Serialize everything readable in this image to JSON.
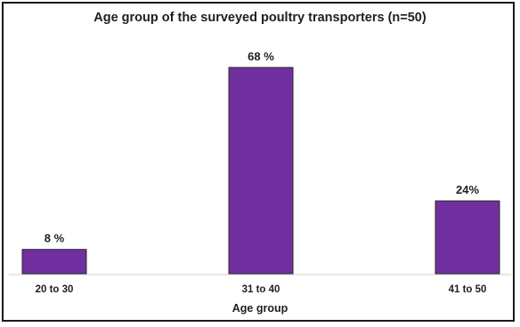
{
  "chart_data": {
    "type": "bar",
    "title": "Age group of the surveyed poultry transporters (n=50)",
    "xlabel": "Age group",
    "ylabel": "",
    "categories": [
      "20 to 30",
      "31 to 40",
      "41 to 50"
    ],
    "values": [
      8,
      68,
      24
    ],
    "data_labels": [
      "8 %",
      "68 %",
      "24%"
    ],
    "ylim": [
      0,
      75
    ],
    "grid": false,
    "legend": "none",
    "bar_color": "#7030a0"
  }
}
